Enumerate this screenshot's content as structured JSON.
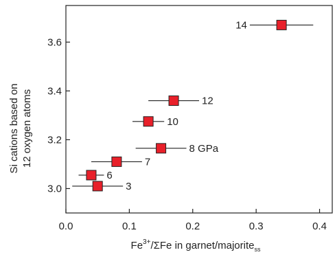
{
  "chart_data": {
    "type": "scatter",
    "xlabel": {
      "main": "Fe",
      "sup": "3+",
      "middle": "/ΣFe in garnet/majorite",
      "sub": "ss"
    },
    "ylabel": [
      "Si cations based on",
      "12 oxygen atoms"
    ],
    "xlim": [
      0.0,
      0.42
    ],
    "ylim": [
      2.9,
      3.75
    ],
    "xticks": [
      0.0,
      0.1,
      0.2,
      0.3,
      0.4
    ],
    "xtick_labels": [
      "0.0",
      "0.1",
      "0.2",
      "0.3",
      "0.4"
    ],
    "yticks": [
      3.0,
      3.2,
      3.4,
      3.6
    ],
    "ytick_labels": [
      "3.0",
      "3.2",
      "3.4",
      "3.6"
    ],
    "grid": false,
    "marker_color": "#e8202a",
    "points": [
      {
        "x": 0.05,
        "y": 3.01,
        "xerr": 0.04,
        "label": "3",
        "label_side": "right"
      },
      {
        "x": 0.04,
        "y": 3.055,
        "xerr": 0.02,
        "label": "6",
        "label_side": "right"
      },
      {
        "x": 0.08,
        "y": 3.11,
        "xerr": 0.04,
        "label": "7",
        "label_side": "right"
      },
      {
        "x": 0.15,
        "y": 3.165,
        "xerr": 0.04,
        "label": "8 GPa",
        "label_side": "right"
      },
      {
        "x": 0.13,
        "y": 3.275,
        "xerr": 0.025,
        "label": "10",
        "label_side": "right"
      },
      {
        "x": 0.17,
        "y": 3.36,
        "xerr": 0.04,
        "label": "12",
        "label_side": "right"
      },
      {
        "x": 0.34,
        "y": 3.67,
        "xerr": 0.05,
        "label": "14",
        "label_side": "left"
      }
    ]
  }
}
